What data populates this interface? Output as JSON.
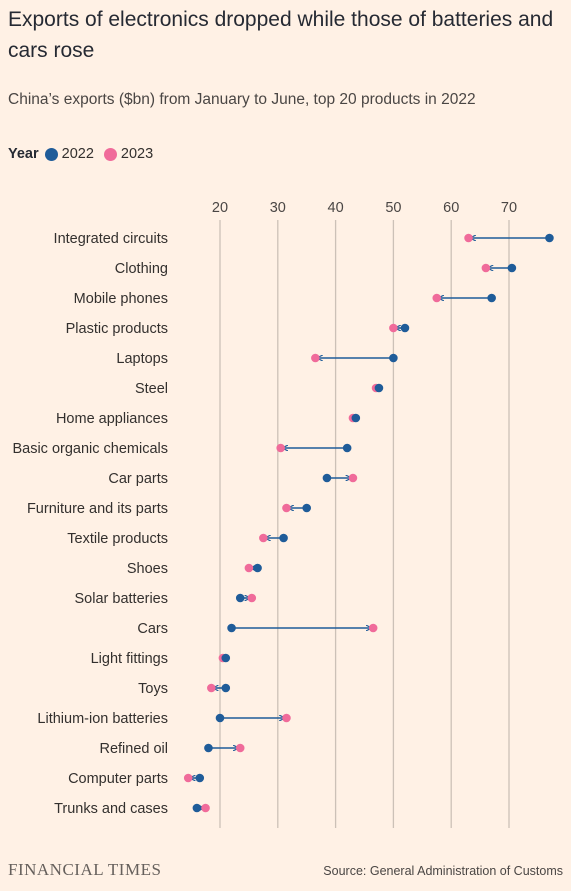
{
  "title": "Exports of electronics dropped while those of batteries and cars rose",
  "subtitle": "China’s exports ($bn) from January to June, top 20 products in 2022",
  "legend": {
    "title": "Year",
    "items": [
      {
        "label": "2022",
        "color": "#1f5c99"
      },
      {
        "label": "2023",
        "color": "#f06b9a"
      }
    ]
  },
  "chart_data": {
    "type": "dot-arrow",
    "title": "Exports of electronics dropped while those of batteries and cars rose",
    "subtitle": "China’s exports ($bn) from January to June, top 20 products in 2022",
    "xlabel": "",
    "ylabel": "",
    "xlim": [
      15,
      78
    ],
    "xticks": [
      20,
      30,
      40,
      50,
      60,
      70
    ],
    "grid": true,
    "legend_position": "top-left",
    "categories": [
      "Integrated circuits",
      "Clothing",
      "Mobile phones",
      "Plastic products",
      "Laptops",
      "Steel",
      "Home appliances",
      "Basic organic chemicals",
      "Car parts",
      "Furniture and its parts",
      "Textile products",
      "Shoes",
      "Solar batteries",
      "Cars",
      "Light fittings",
      "Toys",
      "Lithium-ion batteries",
      "Refined oil",
      "Computer parts",
      "Trunks and cases"
    ],
    "series": [
      {
        "name": "2022",
        "color": "#1f5c99",
        "values": [
          77,
          70.5,
          67,
          52,
          50,
          47.5,
          43.5,
          42,
          38.5,
          35,
          31,
          26.5,
          23.5,
          22,
          21,
          21,
          20,
          18,
          16.5,
          16
        ]
      },
      {
        "name": "2023",
        "color": "#f06b9a",
        "values": [
          63,
          66,
          57.5,
          50,
          36.5,
          47,
          43,
          30.5,
          43,
          31.5,
          27.5,
          25,
          25.5,
          46.5,
          20.5,
          18.5,
          31.5,
          23.5,
          14.5,
          17.5
        ]
      }
    ]
  },
  "footer": {
    "logo": "FINANCIAL TIMES",
    "source": "Source: General Administration of Customs"
  }
}
